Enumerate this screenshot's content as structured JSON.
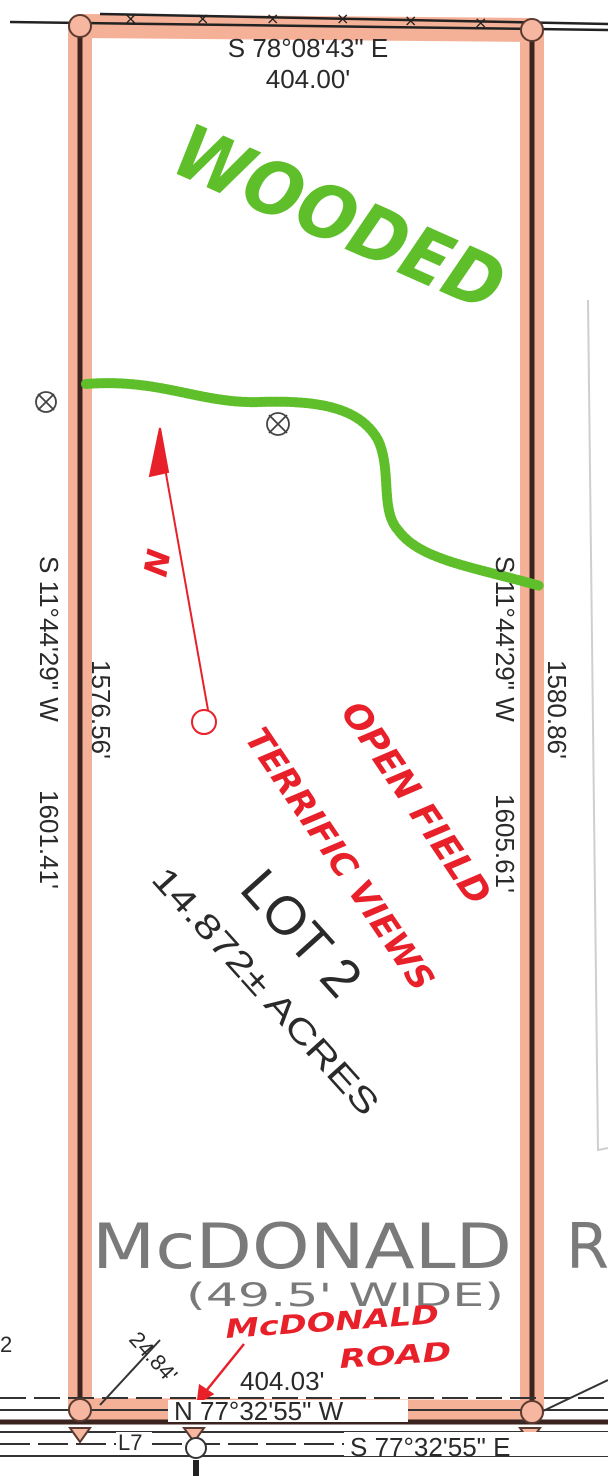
{
  "plat": {
    "north_bearing": "S 78°08'43\" E",
    "north_distance": "404.00'",
    "west_bearing": "S 11°44'29\" W",
    "west_distance": "1601.41'",
    "west_inner_distance": "1576.56'",
    "east_bearing": "S 11°44'29\" W",
    "east_distance": "1605.61'",
    "east_inner_distance": "1580.86'",
    "lot_label": "LOT 2",
    "acreage": "14.872± ACRES",
    "south_inner_distance": "404.03'",
    "south_inner_bearing": "N 77°32'55\" W",
    "south_outer_bearing": "S 77°32'55\" E",
    "corner_offset": "24.84'",
    "line_label": "L7",
    "road_name": "McDONALD",
    "road_name_cut": "R",
    "road_width": "(49.5' WIDE)",
    "margin_mark": "2",
    "north_arrow_letter": "N"
  },
  "annotations": {
    "wooded": "WOODED",
    "open_field": "OPEN FIELD",
    "terrific_views": "TERRIFIC VIEWS",
    "road_line1": "McDONALD",
    "road_line2": "ROAD"
  },
  "colors": {
    "highlight": "#f4a98c",
    "boundary": "#3b2420",
    "wooded": "#5fbf2a",
    "annotation": "#e8202a",
    "ink": "#2a2a2a"
  }
}
